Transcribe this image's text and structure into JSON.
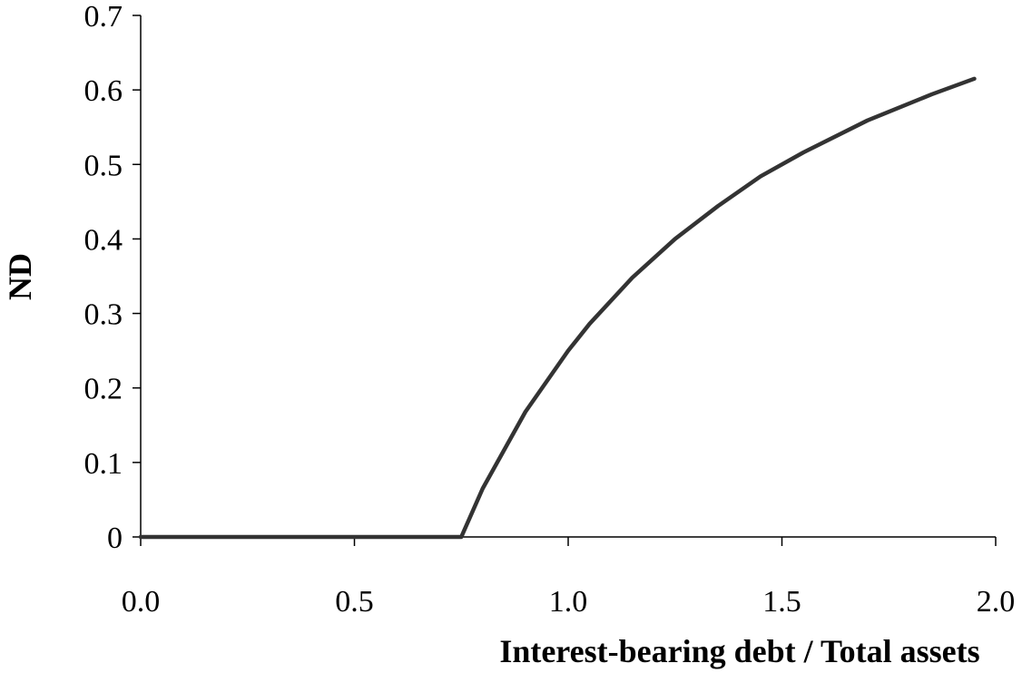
{
  "chart_data": {
    "type": "line",
    "title": "",
    "xlabel": "Interest-bearing debt / Total assets",
    "ylabel": "ND",
    "xlim": [
      0.0,
      2.0
    ],
    "ylim": [
      0,
      0.7
    ],
    "x_ticks": [
      "0.0",
      "0.5",
      "1.0",
      "1.5",
      "2.0"
    ],
    "y_ticks": [
      "0",
      "0.1",
      "0.2",
      "0.3",
      "0.4",
      "0.5",
      "0.6",
      "0.7"
    ],
    "grid": false,
    "legend": "none",
    "series": [
      {
        "color": "#333333",
        "points": [
          [
            0.0,
            0.0
          ],
          [
            0.1,
            0.0
          ],
          [
            0.2,
            0.0
          ],
          [
            0.3,
            0.0
          ],
          [
            0.4,
            0.0
          ],
          [
            0.5,
            0.0
          ],
          [
            0.6,
            0.0
          ],
          [
            0.7,
            0.0
          ],
          [
            0.75,
            0.0
          ],
          [
            0.8,
            0.065
          ],
          [
            0.9,
            0.168
          ],
          [
            1.0,
            0.25
          ],
          [
            1.05,
            0.286
          ],
          [
            1.15,
            0.348
          ],
          [
            1.25,
            0.4
          ],
          [
            1.35,
            0.444
          ],
          [
            1.45,
            0.484
          ],
          [
            1.55,
            0.516
          ],
          [
            1.7,
            0.559
          ],
          [
            1.85,
            0.594
          ],
          [
            1.95,
            0.615
          ]
        ]
      }
    ]
  }
}
